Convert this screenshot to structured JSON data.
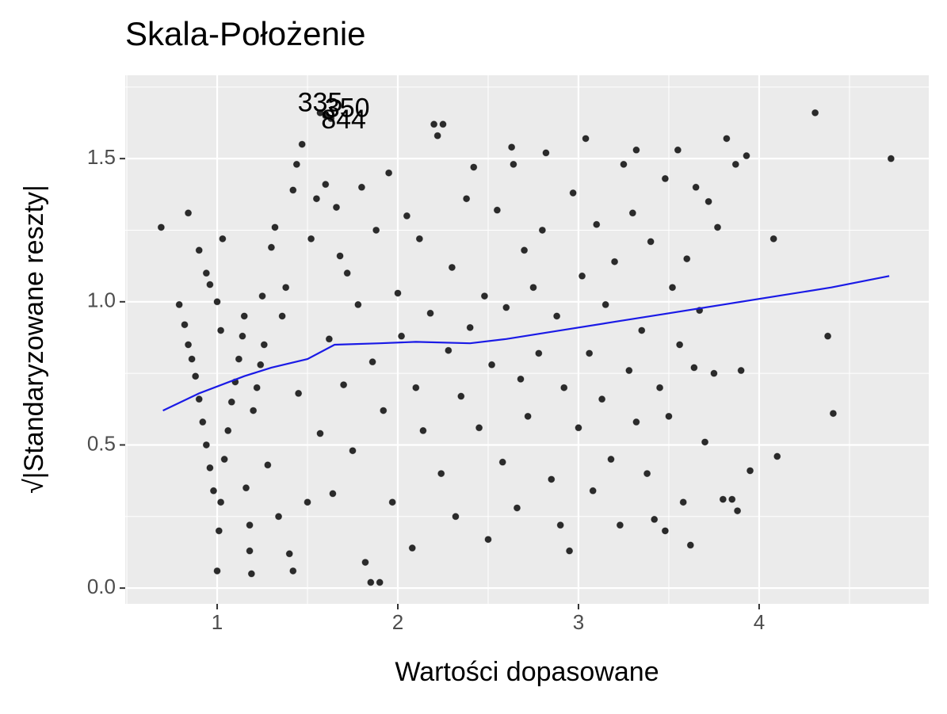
{
  "chart_data": {
    "type": "scatter",
    "title": "Skala-Położenie",
    "x_label": "Wartości dopasowane",
    "y_label": "√|Standaryzowane reszty|",
    "color": "#2b2b2b",
    "xlim": [
      0.491,
      4.939
    ],
    "ylim": [
      -0.055,
      1.791
    ],
    "xticks": [
      1,
      2,
      3,
      4
    ],
    "yticks": [
      {
        "value": 0,
        "label": "0.0"
      },
      {
        "value": 0.5,
        "label": "0.5"
      },
      {
        "value": 1,
        "label": "1.0"
      },
      {
        "value": 1.5,
        "label": "1.5"
      }
    ],
    "xminor": [
      0.5,
      1.5,
      2.5,
      3.5,
      4.5
    ],
    "yminor": [
      0.25,
      0.75,
      1.25,
      1.75
    ],
    "grid": true,
    "x": [
      0.69,
      0.84,
      0.79,
      0.82,
      0.84,
      0.86,
      0.88,
      0.9,
      0.92,
      0.94,
      0.96,
      0.98,
      0.9,
      0.94,
      0.96,
      1.0,
      1.01,
      1.0,
      1.02,
      1.04,
      1.06,
      1.08,
      1.1,
      1.12,
      1.14,
      1.03,
      1.02,
      1.15,
      1.16,
      1.18,
      1.19,
      1.18,
      1.2,
      1.22,
      1.24,
      1.25,
      1.26,
      1.28,
      1.3,
      1.32,
      1.34,
      1.36,
      1.38,
      1.4,
      1.42,
      1.42,
      1.44,
      1.47,
      1.45,
      1.5,
      1.52,
      1.55,
      1.57,
      1.6,
      1.62,
      1.64,
      1.66,
      1.68,
      1.7,
      1.72,
      1.75,
      1.78,
      1.8,
      1.82,
      1.85,
      1.86,
      1.88,
      1.9,
      1.92,
      1.95,
      1.97,
      2.0,
      2.02,
      2.05,
      2.08,
      2.1,
      2.12,
      2.14,
      2.18,
      2.2,
      2.22,
      2.25,
      2.24,
      2.28,
      2.3,
      2.32,
      2.35,
      2.38,
      2.4,
      2.42,
      2.45,
      2.48,
      2.5,
      2.52,
      2.55,
      2.58,
      2.6,
      2.63,
      2.64,
      2.66,
      2.68,
      2.7,
      2.72,
      2.75,
      2.78,
      2.8,
      2.82,
      2.85,
      2.88,
      2.9,
      2.92,
      2.95,
      2.97,
      3.0,
      3.02,
      3.04,
      3.06,
      3.08,
      3.1,
      3.13,
      3.15,
      3.18,
      3.2,
      3.23,
      3.25,
      3.28,
      3.3,
      3.32,
      3.32,
      3.35,
      3.38,
      3.4,
      3.42,
      3.45,
      3.48,
      3.48,
      3.5,
      3.52,
      3.55,
      3.56,
      3.58,
      3.6,
      3.62,
      3.64,
      3.65,
      3.67,
      3.7,
      3.72,
      3.75,
      3.77,
      3.8,
      3.82,
      3.85,
      3.87,
      3.88,
      3.9,
      3.93,
      3.95,
      4.08,
      4.1,
      4.31,
      4.38,
      4.41,
      4.73,
      1.57,
      1.6,
      1.63
    ],
    "values": [
      1.26,
      1.31,
      0.99,
      0.92,
      0.85,
      0.8,
      0.74,
      0.66,
      0.58,
      0.5,
      0.42,
      0.34,
      1.18,
      1.1,
      1.06,
      1.0,
      0.2,
      0.06,
      0.3,
      0.45,
      0.55,
      0.65,
      0.72,
      0.8,
      0.88,
      1.22,
      0.9,
      0.95,
      0.35,
      0.22,
      0.05,
      0.13,
      0.62,
      0.7,
      0.78,
      1.02,
      0.85,
      0.43,
      1.19,
      1.26,
      0.25,
      0.95,
      1.05,
      0.12,
      0.06,
      1.39,
      1.48,
      1.55,
      0.68,
      0.3,
      1.22,
      1.36,
      0.54,
      1.41,
      0.87,
      0.33,
      1.33,
      1.16,
      0.71,
      1.1,
      0.48,
      0.99,
      1.4,
      0.09,
      0.02,
      0.79,
      1.25,
      0.02,
      0.62,
      1.45,
      0.3,
      1.03,
      0.88,
      1.3,
      0.14,
      0.7,
      1.22,
      0.55,
      0.96,
      1.62,
      1.58,
      1.62,
      0.4,
      0.83,
      1.12,
      0.25,
      0.67,
      1.36,
      0.91,
      1.47,
      0.56,
      1.02,
      0.17,
      0.78,
      1.32,
      0.44,
      0.98,
      1.54,
      1.48,
      0.28,
      0.73,
      1.18,
      0.6,
      1.05,
      0.82,
      1.25,
      1.52,
      0.38,
      0.95,
      0.22,
      0.7,
      0.13,
      1.38,
      0.56,
      1.09,
      1.57,
      0.82,
      0.34,
      1.27,
      0.66,
      0.99,
      0.45,
      1.14,
      0.22,
      1.48,
      0.76,
      1.31,
      0.58,
      1.53,
      0.9,
      0.4,
      1.21,
      0.24,
      0.7,
      0.2,
      1.43,
      0.6,
      1.05,
      1.53,
      0.85,
      0.3,
      1.15,
      0.15,
      0.77,
      1.4,
      0.97,
      0.51,
      1.35,
      0.75,
      1.26,
      0.31,
      1.57,
      0.31,
      1.48,
      0.27,
      0.76,
      1.51,
      0.41,
      1.22,
      0.46,
      1.66,
      0.88,
      0.61,
      1.5,
      1.66,
      1.65,
      1.64
    ],
    "smooth": {
      "color": "#1a1ae6",
      "x": [
        0.7,
        0.9,
        1.15,
        1.3,
        1.5,
        1.65,
        1.9,
        2.1,
        2.4,
        2.6,
        2.9,
        3.2,
        3.5,
        3.8,
        4.1,
        4.4,
        4.72
      ],
      "values": [
        0.62,
        0.68,
        0.74,
        0.77,
        0.8,
        0.85,
        0.855,
        0.86,
        0.855,
        0.87,
        0.9,
        0.93,
        0.96,
        0.99,
        1.02,
        1.05,
        1.09
      ]
    },
    "annotations": [
      {
        "text": "335",
        "x": 1.57,
        "y": 1.69
      },
      {
        "text": "350",
        "x": 1.72,
        "y": 1.67
      },
      {
        "text": "844",
        "x": 1.7,
        "y": 1.63
      }
    ]
  }
}
